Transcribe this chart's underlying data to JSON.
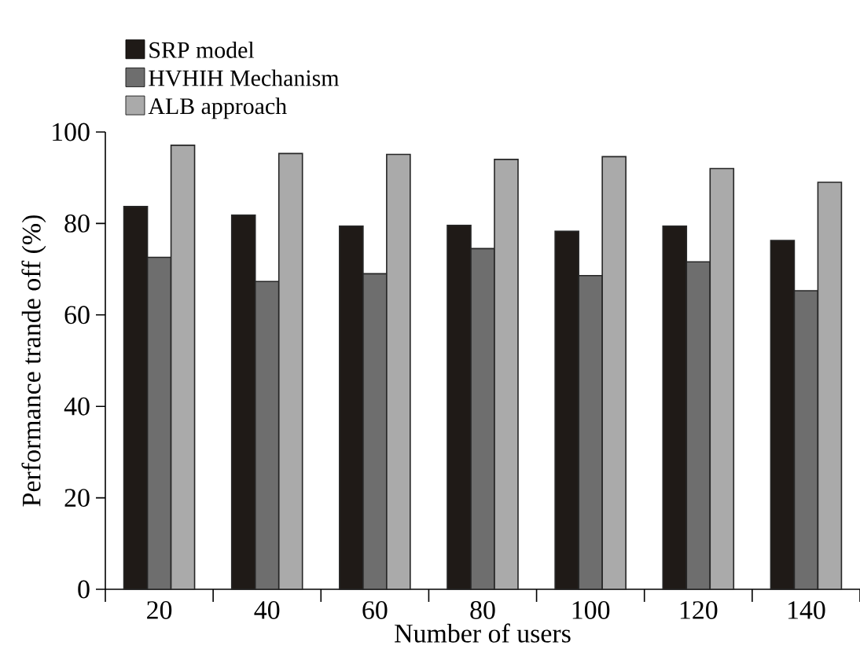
{
  "chart_data": {
    "type": "bar",
    "xlabel": "Number of users",
    "ylabel": "Performance trande off (%)",
    "categories": [
      "20",
      "40",
      "60",
      "80",
      "100",
      "120",
      "140"
    ],
    "series": [
      {
        "name": "SRP model",
        "color": "#1f1a17",
        "values": [
          83.7,
          81.8,
          79.4,
          79.6,
          78.3,
          79.4,
          76.3
        ]
      },
      {
        "name": "HVHIH Mechanism",
        "color": "#6e6e6e",
        "values": [
          72.6,
          67.3,
          69.0,
          74.5,
          68.6,
          71.6,
          65.3
        ]
      },
      {
        "name": "ALB approach",
        "color": "#aaaaaa",
        "values": [
          97.1,
          95.3,
          95.1,
          94.0,
          94.6,
          92.0,
          89.0
        ]
      }
    ],
    "ylim": [
      0,
      100
    ],
    "yticks": [
      0,
      20,
      40,
      60,
      80,
      100
    ],
    "grid": false,
    "legend": "top left"
  }
}
